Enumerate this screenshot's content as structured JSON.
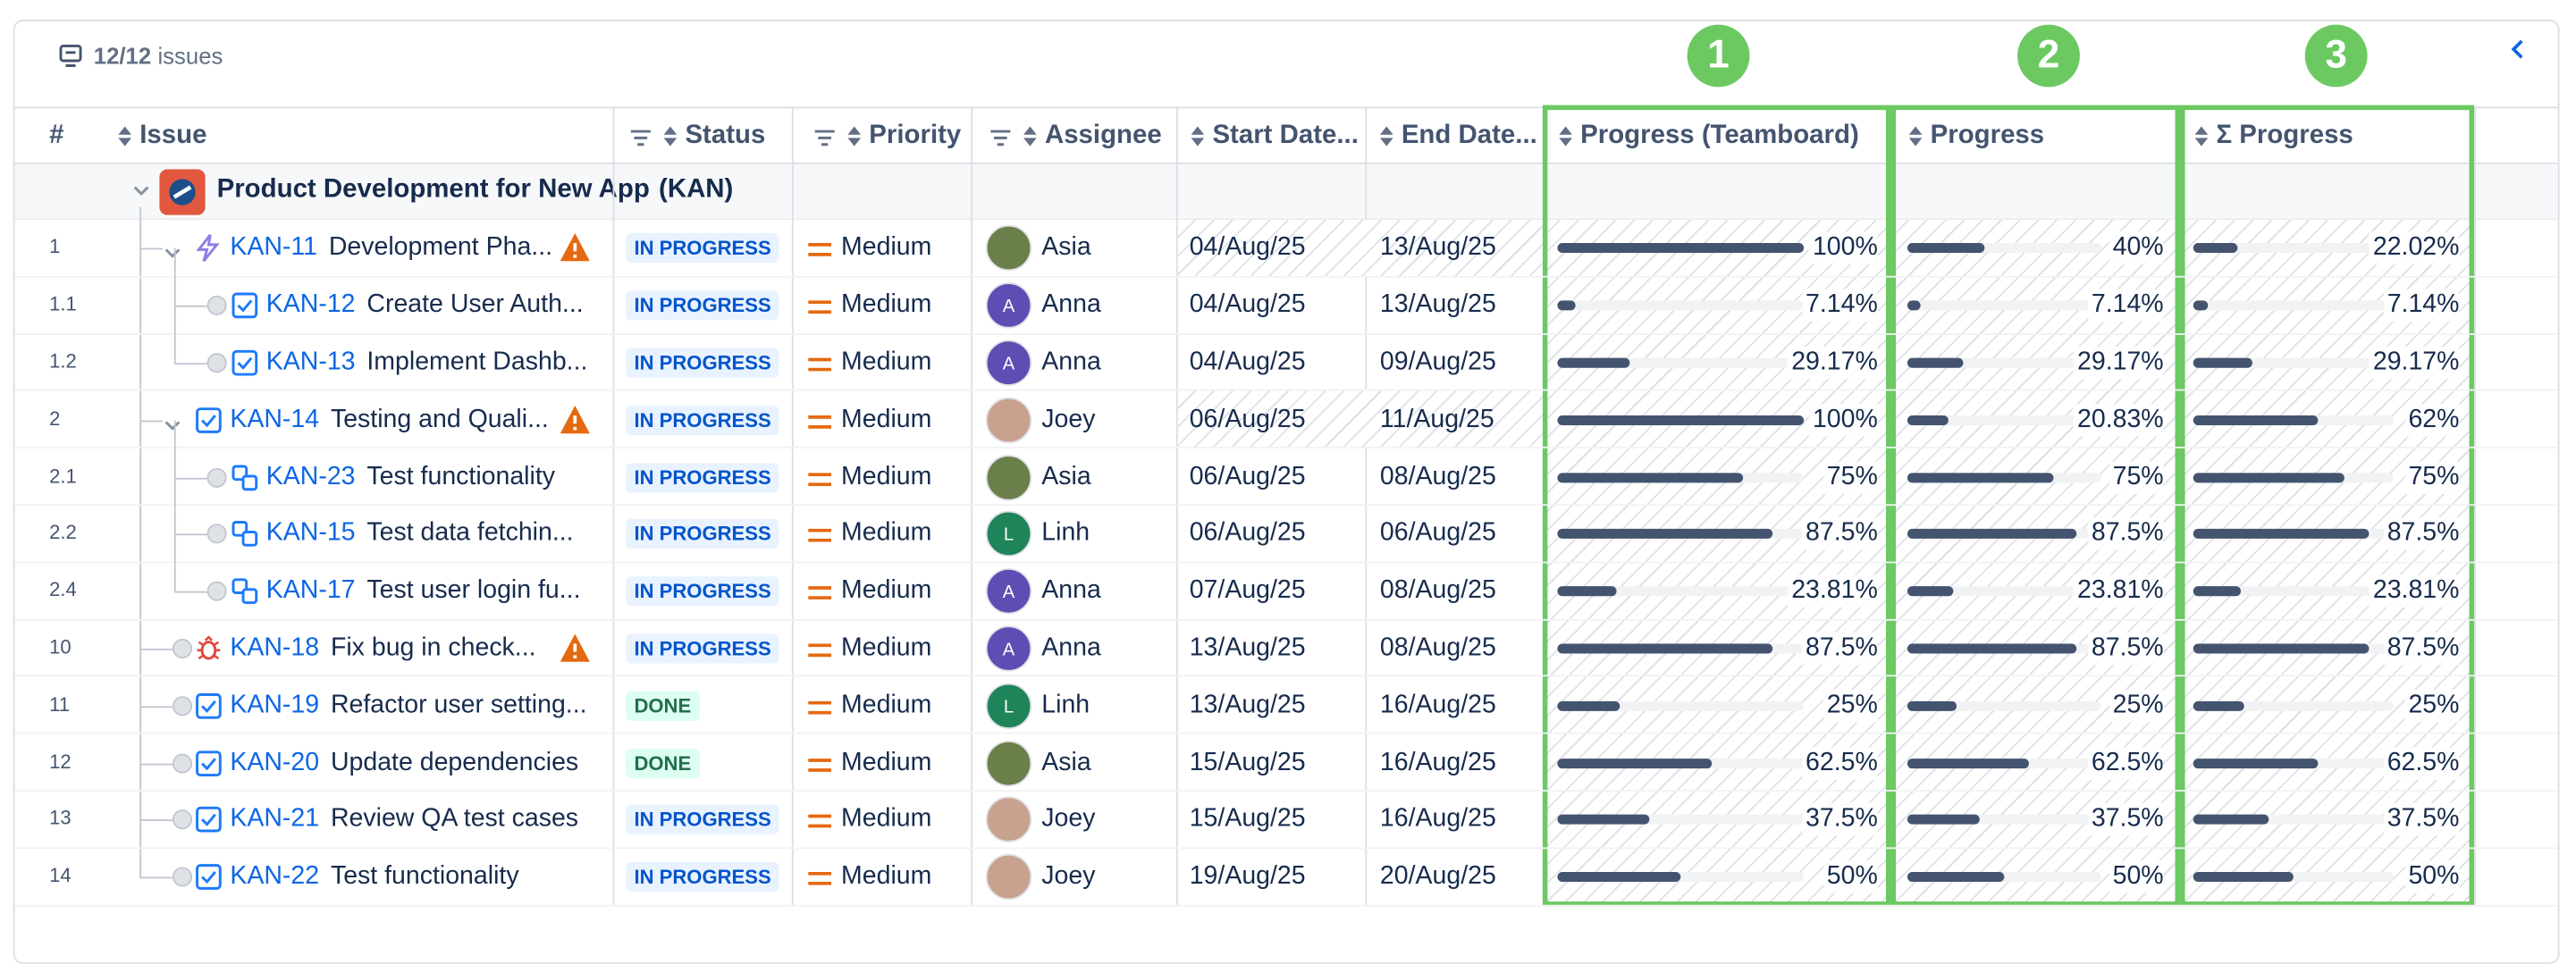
{
  "toolbar": {
    "count": "12/12",
    "label": "issues"
  },
  "annotations": [
    "1",
    "2",
    "3"
  ],
  "columns": [
    "#",
    "Issue",
    "Status",
    "Priority",
    "Assignee",
    "Start Date...",
    "End Date...",
    "Progress (Teamboard)",
    "Progress",
    "Σ Progress"
  ],
  "group": {
    "title": "Product Development for New App",
    "key": "(KAN)"
  },
  "rows": [
    {
      "num": "1",
      "key": "KAN-11",
      "summary": "Development Pha...",
      "status": "IN PROGRESS",
      "priority": "Medium",
      "assignee": "Asia",
      "start": "04/Aug/25",
      "end": "13/Aug/25",
      "progress": [
        {
          "value": 100,
          "label": "100%"
        },
        {
          "value": 40,
          "label": "40%"
        },
        {
          "value": 22.02,
          "label": "22.02%"
        }
      ]
    },
    {
      "num": "1.1",
      "key": "KAN-12",
      "summary": "Create User Auth...",
      "status": "IN PROGRESS",
      "priority": "Medium",
      "initial": "A",
      "assignee": "Anna",
      "start": "04/Aug/25",
      "end": "13/Aug/25",
      "progress": [
        {
          "value": 7.14,
          "label": "7.14%"
        },
        {
          "value": 7.14,
          "label": "7.14%"
        },
        {
          "value": 7.14,
          "label": "7.14%"
        }
      ]
    },
    {
      "num": "1.2",
      "key": "KAN-13",
      "summary": "Implement Dashb...",
      "status": "IN PROGRESS",
      "priority": "Medium",
      "initial": "A",
      "assignee": "Anna",
      "start": "04/Aug/25",
      "end": "09/Aug/25",
      "progress": [
        {
          "value": 29.17,
          "label": "29.17%"
        },
        {
          "value": 29.17,
          "label": "29.17%"
        },
        {
          "value": 29.17,
          "label": "29.17%"
        }
      ]
    },
    {
      "num": "2",
      "key": "KAN-14",
      "summary": "Testing and Quali...",
      "status": "IN PROGRESS",
      "priority": "Medium",
      "assignee": "Joey",
      "start": "06/Aug/25",
      "end": "11/Aug/25",
      "progress": [
        {
          "value": 100,
          "label": "100%"
        },
        {
          "value": 20.83,
          "label": "20.83%"
        },
        {
          "value": 62,
          "label": "62%"
        }
      ]
    },
    {
      "num": "2.1",
      "key": "KAN-23",
      "summary": "Test functionality",
      "status": "IN PROGRESS",
      "priority": "Medium",
      "assignee": "Asia",
      "start": "06/Aug/25",
      "end": "08/Aug/25",
      "progress": [
        {
          "value": 75,
          "label": "75%"
        },
        {
          "value": 75,
          "label": "75%"
        },
        {
          "value": 75,
          "label": "75%"
        }
      ]
    },
    {
      "num": "2.2",
      "key": "KAN-15",
      "summary": "Test data fetchin...",
      "status": "IN PROGRESS",
      "priority": "Medium",
      "initial": "L",
      "assignee": "Linh",
      "start": "06/Aug/25",
      "end": "06/Aug/25",
      "progress": [
        {
          "value": 87.5,
          "label": "87.5%"
        },
        {
          "value": 87.5,
          "label": "87.5%"
        },
        {
          "value": 87.5,
          "label": "87.5%"
        }
      ]
    },
    {
      "num": "2.4",
      "key": "KAN-17",
      "summary": "Test user login fu...",
      "status": "IN PROGRESS",
      "priority": "Medium",
      "initial": "A",
      "assignee": "Anna",
      "start": "07/Aug/25",
      "end": "08/Aug/25",
      "progress": [
        {
          "value": 23.81,
          "label": "23.81%"
        },
        {
          "value": 23.81,
          "label": "23.81%"
        },
        {
          "value": 23.81,
          "label": "23.81%"
        }
      ]
    },
    {
      "num": "10",
      "key": "KAN-18",
      "summary": "Fix bug in check...",
      "status": "IN PROGRESS",
      "priority": "Medium",
      "initial": "A",
      "assignee": "Anna",
      "start": "13/Aug/25",
      "end": "08/Aug/25",
      "progress": [
        {
          "value": 87.5,
          "label": "87.5%"
        },
        {
          "value": 87.5,
          "label": "87.5%"
        },
        {
          "value": 87.5,
          "label": "87.5%"
        }
      ]
    },
    {
      "num": "11",
      "key": "KAN-19",
      "summary": "Refactor user setting...",
      "status": "DONE",
      "priority": "Medium",
      "initial": "L",
      "assignee": "Linh",
      "start": "13/Aug/25",
      "end": "16/Aug/25",
      "progress": [
        {
          "value": 25,
          "label": "25%"
        },
        {
          "value": 25,
          "label": "25%"
        },
        {
          "value": 25,
          "label": "25%"
        }
      ]
    },
    {
      "num": "12",
      "key": "KAN-20",
      "summary": "Update dependencies",
      "status": "DONE",
      "priority": "Medium",
      "assignee": "Asia",
      "start": "15/Aug/25",
      "end": "16/Aug/25",
      "progress": [
        {
          "value": 62.5,
          "label": "62.5%"
        },
        {
          "value": 62.5,
          "label": "62.5%"
        },
        {
          "value": 62.5,
          "label": "62.5%"
        }
      ]
    },
    {
      "num": "13",
      "key": "KAN-21",
      "summary": "Review QA test cases",
      "status": "IN PROGRESS",
      "priority": "Medium",
      "assignee": "Joey",
      "start": "15/Aug/25",
      "end": "16/Aug/25",
      "progress": [
        {
          "value": 37.5,
          "label": "37.5%"
        },
        {
          "value": 37.5,
          "label": "37.5%"
        },
        {
          "value": 37.5,
          "label": "37.5%"
        }
      ]
    },
    {
      "num": "14",
      "key": "KAN-22",
      "summary": "Test functionality",
      "status": "IN PROGRESS",
      "priority": "Medium",
      "assignee": "Joey",
      "start": "19/Aug/25",
      "end": "20/Aug/25",
      "progress": [
        {
          "value": 50,
          "label": "50%"
        },
        {
          "value": 50,
          "label": "50%"
        },
        {
          "value": 50,
          "label": "50%"
        }
      ]
    }
  ]
}
